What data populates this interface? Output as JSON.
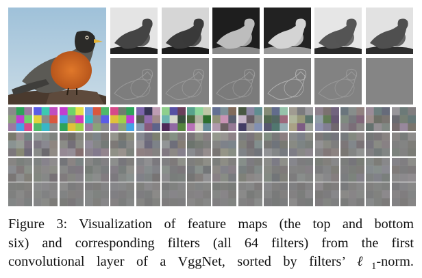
{
  "figure": {
    "input_image": "robin-bird-photo",
    "feature_map_rows": 2,
    "feature_maps_per_row": 6,
    "filter_grid_rows": 4,
    "filter_grid_cols": 16
  },
  "caption": {
    "label": "Figure 3:",
    "line1": "Visualization of feature maps (the top and bottom",
    "line2": "six) and corresponding filters (all 64 filters) from the first",
    "line3_pre": "convolutional layer of a VggNet, sorted by filters’ ",
    "line3_ell": "ℓ",
    "line3_sub": "1",
    "line3_post": "-norm."
  }
}
